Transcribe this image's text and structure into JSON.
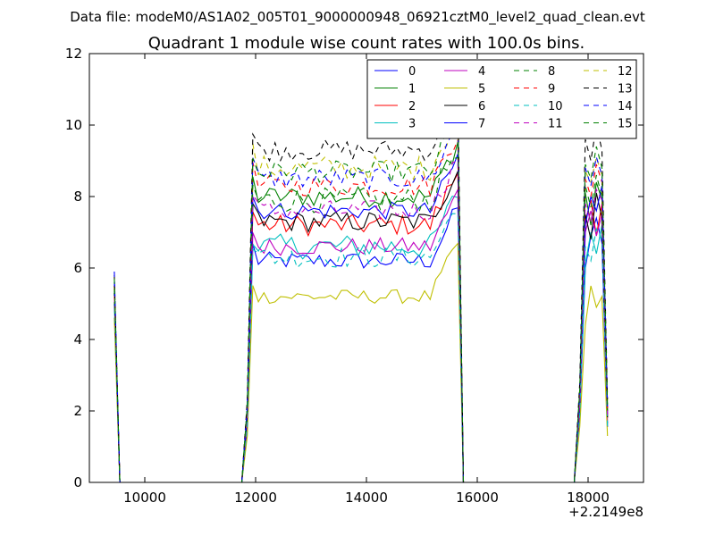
{
  "header": {
    "datafile": "Data file: modeM0/AS1A02_005T01_9000000948_06921cztM0_level2_quad_clean.evt"
  },
  "chart_data": {
    "type": "line",
    "title": "Quadrant 1 module wise count rates with 100.0s bins.",
    "xlabel": "",
    "ylabel": "",
    "x_offset_label": "+2.2149e8",
    "xlim": [
      9000,
      19000
    ],
    "ylim": [
      0,
      12
    ],
    "xticks": [
      10000,
      12000,
      14000,
      16000,
      18000
    ],
    "xtick_labels": [
      "10000",
      "12000",
      "14000",
      "16000",
      "18000"
    ],
    "yticks": [
      0,
      2,
      4,
      6,
      8,
      10,
      12
    ],
    "ytick_labels": [
      "0",
      "2",
      "4",
      "6",
      "8",
      "10",
      "12"
    ],
    "grid": false,
    "legend_position": "top-right",
    "legend_columns": 4,
    "segments": [
      {
        "name": "pre",
        "start": 9450,
        "n": 2
      },
      {
        "name": "main",
        "start": 11950,
        "n": 38
      },
      {
        "name": "post",
        "start": 17950,
        "n": 4
      }
    ],
    "series": [
      {
        "name": "0",
        "color": "#0000ff",
        "dashed": false,
        "level": 6.2,
        "amp": 0.25,
        "pre": 5.3,
        "post": [
          6.0,
          6.9,
          7.4,
          6.7
        ]
      },
      {
        "name": "1",
        "color": "#008000",
        "dashed": false,
        "level": 8.0,
        "amp": 0.3,
        "pre": 5.5,
        "post": [
          8.1,
          7.2,
          8.4,
          7.9
        ]
      },
      {
        "name": "2",
        "color": "#ff0000",
        "dashed": false,
        "level": 7.2,
        "amp": 0.3,
        "pre": 5.2,
        "post": [
          7.3,
          7.9,
          6.9,
          7.8
        ]
      },
      {
        "name": "3",
        "color": "#00bfbf",
        "dashed": false,
        "level": 6.6,
        "amp": 0.35,
        "pre": 5.0,
        "post": [
          6.1,
          7.0,
          6.4,
          7.2
        ]
      },
      {
        "name": "4",
        "color": "#bf00bf",
        "dashed": false,
        "level": 6.6,
        "amp": 0.25,
        "pre": 5.4,
        "post": [
          7.0,
          7.6,
          6.9,
          7.5
        ]
      },
      {
        "name": "5",
        "color": "#bfbf00",
        "dashed": false,
        "level": 5.2,
        "amp": 0.2,
        "pre": 4.6,
        "post": [
          4.4,
          5.5,
          4.9,
          5.2
        ]
      },
      {
        "name": "6",
        "color": "#000000",
        "dashed": false,
        "level": 7.3,
        "amp": 0.3,
        "pre": 5.3,
        "post": [
          7.5,
          6.8,
          8.1,
          7.4
        ]
      },
      {
        "name": "7",
        "color": "#0000ff",
        "dashed": false,
        "level": 7.6,
        "amp": 0.25,
        "pre": 5.6,
        "post": [
          7.2,
          8.0,
          7.6,
          8.3
        ]
      },
      {
        "name": "8",
        "color": "#008000",
        "dashed": true,
        "level": 7.9,
        "amp": 0.35,
        "pre": 5.4,
        "post": [
          8.3,
          7.7,
          8.6,
          8.0
        ]
      },
      {
        "name": "9",
        "color": "#ff0000",
        "dashed": true,
        "level": 8.3,
        "amp": 0.3,
        "pre": 5.5,
        "post": [
          8.5,
          8.0,
          8.9,
          8.4
        ]
      },
      {
        "name": "10",
        "color": "#00bfbf",
        "dashed": true,
        "level": 6.3,
        "amp": 0.3,
        "pre": 4.9,
        "post": [
          6.6,
          6.2,
          7.1,
          6.8
        ]
      },
      {
        "name": "11",
        "color": "#bf00bf",
        "dashed": true,
        "level": 7.6,
        "amp": 0.3,
        "pre": 5.2,
        "post": [
          7.8,
          7.3,
          8.2,
          7.9
        ]
      },
      {
        "name": "12",
        "color": "#bfbf00",
        "dashed": true,
        "level": 8.8,
        "amp": 0.35,
        "pre": 5.5,
        "post": [
          8.7,
          8.4,
          9.1,
          8.6
        ]
      },
      {
        "name": "13",
        "color": "#000000",
        "dashed": true,
        "level": 9.3,
        "amp": 0.3,
        "pre": 5.8,
        "post": [
          9.6,
          9.0,
          10.0,
          9.3
        ]
      },
      {
        "name": "14",
        "color": "#0000ff",
        "dashed": true,
        "level": 8.5,
        "amp": 0.3,
        "pre": 5.9,
        "post": [
          8.8,
          8.3,
          9.1,
          8.6
        ]
      },
      {
        "name": "15",
        "color": "#008000",
        "dashed": true,
        "level": 8.7,
        "amp": 0.3,
        "pre": 5.7,
        "post": [
          8.9,
          8.5,
          9.4,
          8.8
        ]
      }
    ]
  }
}
